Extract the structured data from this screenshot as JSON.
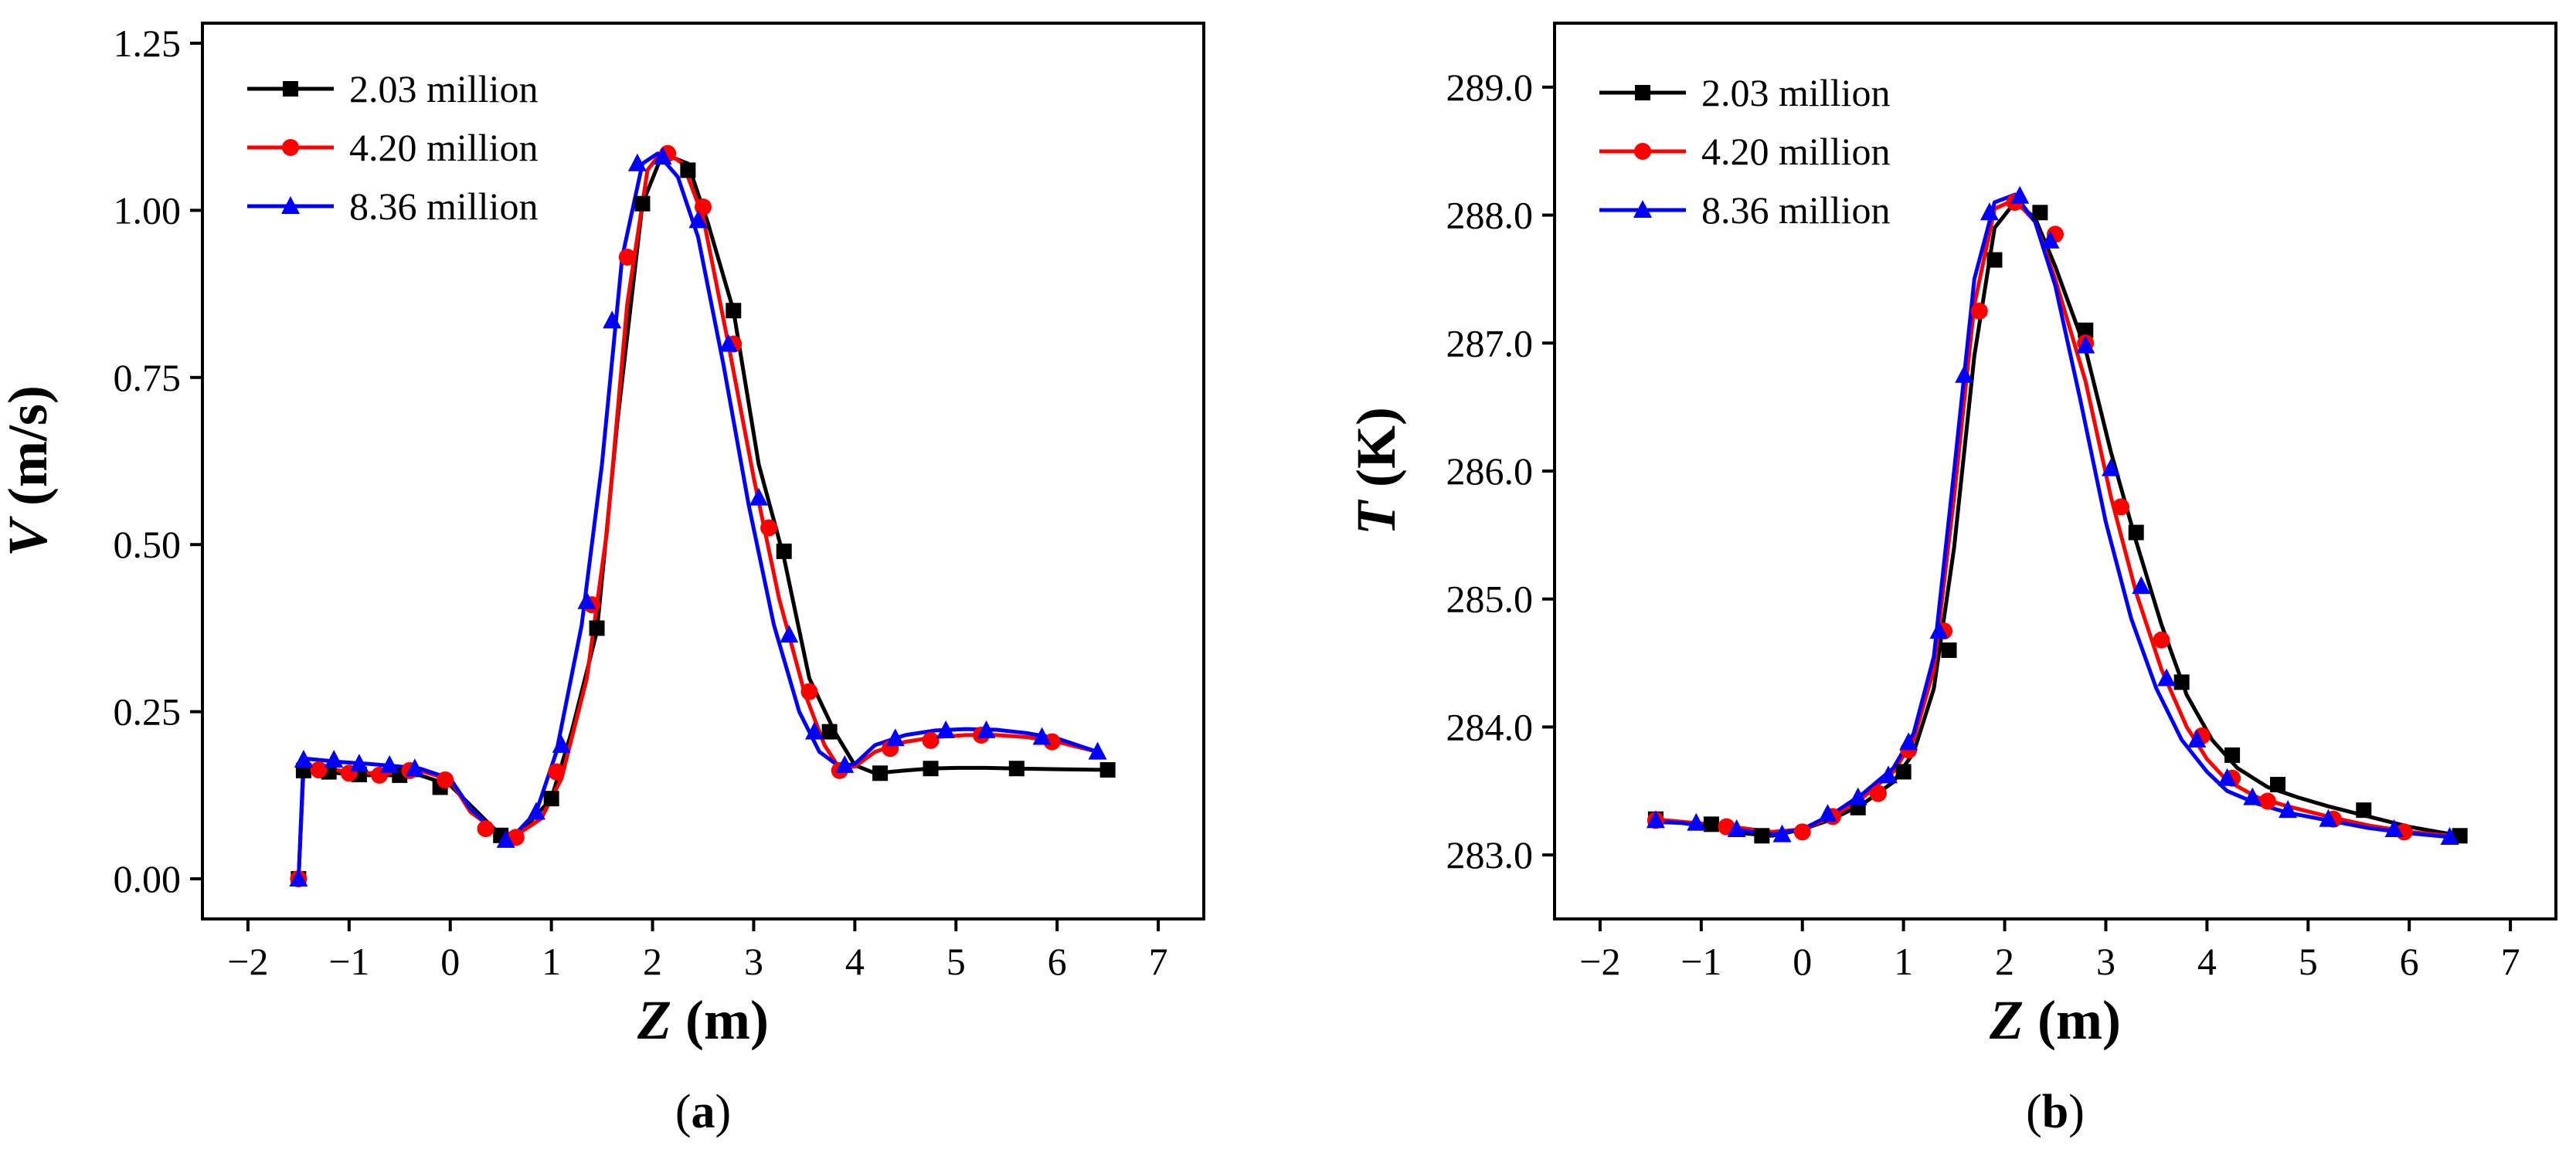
{
  "chart_data": [
    {
      "type": "line",
      "panel_label": "a",
      "title": "",
      "xlabel": {
        "var": "Z",
        "unit": " (m)"
      },
      "ylabel": {
        "var": "V",
        "unit": " (m/s)"
      },
      "xlim": [
        -2.45,
        7.45
      ],
      "ylim": [
        -0.06,
        1.28
      ],
      "xticks": [
        -2,
        -1,
        0,
        1,
        2,
        3,
        4,
        5,
        6,
        7
      ],
      "xtick_labels": [
        "−2",
        "−1",
        "0",
        "1",
        "2",
        "3",
        "4",
        "5",
        "6",
        "7"
      ],
      "yticks": [
        0.0,
        0.25,
        0.5,
        0.75,
        1.0,
        1.25
      ],
      "ytick_labels": [
        "0.00",
        "0.25",
        "0.50",
        "0.75",
        "1.00",
        "1.25"
      ],
      "grid": false,
      "legend_position": "top-left",
      "series": [
        {
          "name": "2.03 million",
          "color": "#000000",
          "marker": "square",
          "x": [
            -1.5,
            -1.45,
            -1.3,
            -1.1,
            -0.8,
            -0.5,
            -0.3,
            0.0,
            0.2,
            0.5,
            0.7,
            1.0,
            1.2,
            1.45,
            1.65,
            1.9,
            2.1,
            2.35,
            2.55,
            2.8,
            3.05,
            3.3,
            3.55,
            3.8,
            4.0,
            4.2,
            4.5,
            4.75,
            5.0,
            5.3,
            5.6,
            6.0,
            6.5
          ],
          "y": [
            0.0,
            0.165,
            0.162,
            0.158,
            0.155,
            0.155,
            0.155,
            0.14,
            0.11,
            0.065,
            0.07,
            0.12,
            0.22,
            0.37,
            0.68,
            1.01,
            1.085,
            1.07,
            0.98,
            0.85,
            0.62,
            0.48,
            0.3,
            0.22,
            0.17,
            0.158,
            0.162,
            0.165,
            0.166,
            0.166,
            0.165,
            0.164,
            0.163
          ],
          "marker_x": [
            -1.5,
            -1.45,
            -1.2,
            -0.9,
            -0.5,
            -0.1,
            0.5,
            1.0,
            1.45,
            1.9,
            2.35,
            2.8,
            3.3,
            3.75,
            4.25,
            4.75,
            5.6,
            6.5
          ],
          "marker_y": [
            0.0,
            0.162,
            0.16,
            0.156,
            0.155,
            0.137,
            0.065,
            0.12,
            0.375,
            1.01,
            1.06,
            0.85,
            0.49,
            0.22,
            0.158,
            0.165,
            0.165,
            0.163
          ]
        },
        {
          "name": "4.20 million",
          "color": "#ff0000",
          "marker": "circle",
          "x": [
            -1.5,
            -1.45,
            -1.3,
            -1.1,
            -0.8,
            -0.5,
            -0.3,
            0.0,
            0.2,
            0.45,
            0.65,
            0.9,
            1.1,
            1.35,
            1.55,
            1.75,
            1.95,
            2.1,
            2.3,
            2.5,
            2.75,
            3.0,
            3.25,
            3.5,
            3.7,
            3.85,
            4.0,
            4.2,
            4.5,
            4.8,
            5.1,
            5.4,
            5.7,
            6.0,
            6.4
          ],
          "y": [
            0.0,
            0.17,
            0.168,
            0.162,
            0.158,
            0.158,
            0.162,
            0.148,
            0.1,
            0.072,
            0.065,
            0.09,
            0.15,
            0.3,
            0.52,
            0.86,
            1.06,
            1.09,
            1.07,
            0.99,
            0.8,
            0.6,
            0.42,
            0.28,
            0.2,
            0.165,
            0.168,
            0.19,
            0.205,
            0.212,
            0.215,
            0.215,
            0.212,
            0.205,
            0.19
          ],
          "marker_x": [
            -1.5,
            -1.3,
            -1.0,
            -0.7,
            -0.4,
            -0.05,
            0.35,
            0.65,
            1.05,
            1.4,
            1.75,
            2.15,
            2.5,
            2.8,
            3.15,
            3.55,
            3.85,
            4.35,
            4.75,
            5.25,
            5.95
          ],
          "marker_y": [
            0.0,
            0.163,
            0.158,
            0.155,
            0.162,
            0.148,
            0.075,
            0.062,
            0.16,
            0.41,
            0.93,
            1.085,
            1.005,
            0.8,
            0.525,
            0.28,
            0.162,
            0.195,
            0.207,
            0.215,
            0.205
          ]
        },
        {
          "name": "8.36 million",
          "color": "#0000ff",
          "marker": "triangle",
          "x": [
            -1.5,
            -1.45,
            -1.3,
            -1.1,
            -0.8,
            -0.5,
            -0.3,
            0.0,
            0.2,
            0.45,
            0.6,
            0.85,
            1.05,
            1.3,
            1.5,
            1.7,
            1.9,
            2.05,
            2.25,
            2.45,
            2.7,
            2.95,
            3.2,
            3.45,
            3.65,
            3.85,
            4.0,
            4.2,
            4.5,
            4.8,
            5.1,
            5.4,
            5.7,
            6.0,
            6.4
          ],
          "y": [
            0.0,
            0.18,
            0.178,
            0.175,
            0.172,
            0.168,
            0.165,
            0.15,
            0.105,
            0.07,
            0.06,
            0.1,
            0.19,
            0.38,
            0.62,
            0.93,
            1.07,
            1.085,
            1.05,
            0.96,
            0.77,
            0.56,
            0.38,
            0.25,
            0.19,
            0.168,
            0.172,
            0.2,
            0.215,
            0.222,
            0.224,
            0.223,
            0.218,
            0.21,
            0.19
          ],
          "marker_x": [
            -1.5,
            -1.45,
            -1.15,
            -0.9,
            -0.6,
            -0.35,
            0.55,
            0.85,
            1.1,
            1.35,
            1.6,
            1.85,
            2.1,
            2.45,
            2.75,
            3.05,
            3.35,
            3.6,
            3.9,
            4.4,
            4.9,
            5.3,
            5.85,
            6.4
          ],
          "marker_y": [
            0.0,
            0.178,
            0.178,
            0.172,
            0.17,
            0.165,
            0.058,
            0.1,
            0.2,
            0.415,
            0.835,
            1.07,
            1.08,
            0.985,
            0.8,
            0.57,
            0.365,
            0.22,
            0.17,
            0.21,
            0.222,
            0.222,
            0.212,
            0.19
          ]
        }
      ]
    },
    {
      "type": "line",
      "panel_label": "b",
      "title": "",
      "xlabel": {
        "var": "Z",
        "unit": " (m)"
      },
      "ylabel": {
        "var": "T",
        "unit": " (K)"
      },
      "xlim": [
        -2.45,
        7.45
      ],
      "ylim": [
        282.5,
        289.5
      ],
      "xticks": [
        -2,
        -1,
        0,
        1,
        2,
        3,
        4,
        5,
        6,
        7
      ],
      "xtick_labels": [
        "−2",
        "−1",
        "0",
        "1",
        "2",
        "3",
        "4",
        "5",
        "6",
        "7"
      ],
      "yticks": [
        283.0,
        284.0,
        285.0,
        286.0,
        287.0,
        288.0,
        289.0
      ],
      "ytick_labels": [
        "283.0",
        "284.0",
        "285.0",
        "286.0",
        "287.0",
        "288.0",
        "289.0"
      ],
      "grid": false,
      "legend_position": "top-left",
      "series": [
        {
          "name": "2.03 million",
          "color": "#000000",
          "marker": "square",
          "x": [
            -1.5,
            -1.2,
            -0.9,
            -0.6,
            -0.3,
            0.0,
            0.3,
            0.6,
            0.9,
            1.1,
            1.3,
            1.5,
            1.7,
            1.9,
            2.1,
            2.3,
            2.5,
            2.8,
            3.05,
            3.3,
            3.55,
            3.8,
            4.05,
            4.3,
            4.6,
            4.9,
            5.2,
            5.6,
            6.0,
            6.5
          ],
          "y": [
            283.28,
            283.26,
            283.22,
            283.17,
            283.15,
            283.2,
            283.28,
            283.4,
            283.57,
            283.8,
            284.3,
            285.4,
            286.9,
            287.9,
            288.1,
            287.98,
            287.6,
            286.95,
            286.15,
            285.45,
            284.8,
            284.25,
            283.9,
            283.68,
            283.53,
            283.45,
            283.38,
            283.3,
            283.22,
            283.15
          ],
          "marker_x": [
            -1.45,
            -0.9,
            -0.4,
            0.55,
            1.0,
            1.45,
            1.9,
            2.35,
            2.8,
            3.3,
            3.75,
            4.25,
            4.7,
            5.55,
            6.5
          ],
          "marker_y": [
            283.28,
            283.24,
            283.15,
            283.37,
            283.65,
            284.6,
            287.65,
            288.02,
            287.1,
            285.52,
            284.35,
            283.78,
            283.55,
            283.35,
            283.15
          ]
        },
        {
          "name": "4.20 million",
          "color": "#ff0000",
          "marker": "circle",
          "x": [
            -1.5,
            -1.2,
            -0.9,
            -0.6,
            -0.3,
            0.0,
            0.3,
            0.6,
            0.9,
            1.1,
            1.3,
            1.5,
            1.7,
            1.9,
            2.1,
            2.3,
            2.5,
            2.8,
            3.05,
            3.3,
            3.55,
            3.8,
            4.0,
            4.2,
            4.5,
            4.8,
            5.2,
            5.6,
            6.0,
            6.4
          ],
          "y": [
            283.28,
            283.26,
            283.24,
            283.21,
            283.18,
            283.2,
            283.3,
            283.45,
            283.65,
            283.9,
            284.45,
            285.8,
            287.3,
            288.05,
            288.12,
            287.95,
            287.5,
            286.7,
            285.8,
            285.05,
            284.45,
            284.0,
            283.75,
            283.58,
            283.45,
            283.38,
            283.3,
            283.23,
            283.18,
            283.15
          ],
          "marker_x": [
            -1.45,
            -0.75,
            0.0,
            0.3,
            0.75,
            1.05,
            1.4,
            1.75,
            2.1,
            2.5,
            2.8,
            3.15,
            3.55,
            3.95,
            4.25,
            4.6,
            5.25,
            5.95
          ],
          "marker_y": [
            283.27,
            283.22,
            283.18,
            283.3,
            283.48,
            283.82,
            284.75,
            287.25,
            288.1,
            287.85,
            287.0,
            285.72,
            284.68,
            283.93,
            283.6,
            283.42,
            283.28,
            283.18
          ]
        },
        {
          "name": "8.36 million",
          "color": "#0000ff",
          "marker": "triangle",
          "x": [
            -1.5,
            -1.2,
            -0.9,
            -0.6,
            -0.3,
            0.0,
            0.3,
            0.6,
            0.9,
            1.1,
            1.3,
            1.5,
            1.7,
            1.9,
            2.1,
            2.3,
            2.5,
            2.75,
            3.0,
            3.25,
            3.5,
            3.75,
            4.0,
            4.2,
            4.5,
            4.8,
            5.2,
            5.6,
            6.0,
            6.4
          ],
          "y": [
            283.26,
            283.25,
            283.22,
            283.19,
            283.16,
            283.2,
            283.32,
            283.48,
            283.68,
            283.95,
            284.55,
            286.0,
            287.5,
            288.1,
            288.16,
            287.95,
            287.45,
            286.55,
            285.6,
            284.85,
            284.3,
            283.9,
            283.65,
            283.5,
            283.4,
            283.33,
            283.27,
            283.21,
            283.17,
            283.14
          ],
          "marker_x": [
            -1.45,
            -1.05,
            -0.65,
            -0.2,
            0.25,
            0.55,
            0.85,
            1.05,
            1.35,
            1.6,
            1.85,
            2.15,
            2.45,
            2.8,
            3.05,
            3.35,
            3.6,
            3.9,
            4.2,
            4.45,
            4.8,
            5.2,
            5.85,
            6.4
          ],
          "marker_y": [
            283.27,
            283.25,
            283.2,
            283.16,
            283.32,
            283.45,
            283.62,
            283.88,
            284.75,
            286.75,
            288.02,
            288.15,
            287.8,
            286.98,
            286.02,
            285.1,
            284.38,
            283.9,
            283.6,
            283.45,
            283.35,
            283.28,
            283.2,
            283.14
          ]
        }
      ]
    }
  ]
}
